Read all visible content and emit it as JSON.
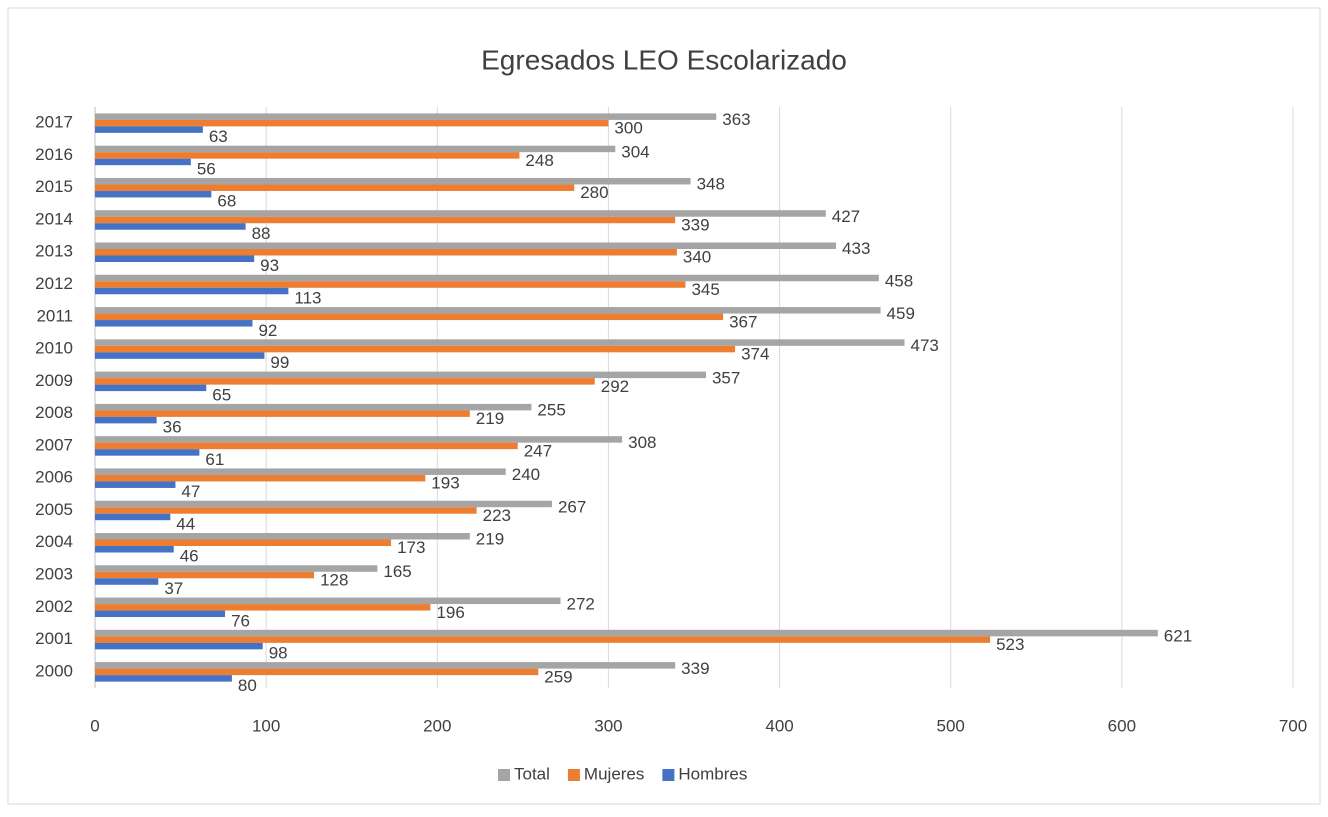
{
  "chart_data": {
    "type": "bar",
    "orientation": "horizontal",
    "title": "Egresados LEO Escolarizado",
    "categories": [
      "2000",
      "2001",
      "2002",
      "2003",
      "2004",
      "2005",
      "2006",
      "2007",
      "2008",
      "2009",
      "2010",
      "2011",
      "2012",
      "2013",
      "2014",
      "2015",
      "2016",
      "2017"
    ],
    "series": [
      {
        "name": "Total",
        "color": "#a5a5a5",
        "values": [
          339,
          621,
          272,
          165,
          219,
          267,
          240,
          308,
          255,
          357,
          473,
          459,
          458,
          433,
          427,
          348,
          304,
          363
        ]
      },
      {
        "name": "Mujeres",
        "color": "#ed7d31",
        "values": [
          259,
          523,
          196,
          128,
          173,
          223,
          193,
          247,
          219,
          292,
          374,
          367,
          345,
          340,
          339,
          280,
          248,
          300
        ]
      },
      {
        "name": "Hombres",
        "color": "#4472c4",
        "values": [
          80,
          98,
          76,
          37,
          46,
          44,
          47,
          61,
          36,
          65,
          99,
          92,
          113,
          93,
          88,
          68,
          56,
          63
        ]
      }
    ],
    "xlim": [
      0,
      700
    ],
    "xticks": [
      0,
      100,
      200,
      300,
      400,
      500,
      600,
      700
    ],
    "grid": true,
    "legend": "bottom"
  }
}
